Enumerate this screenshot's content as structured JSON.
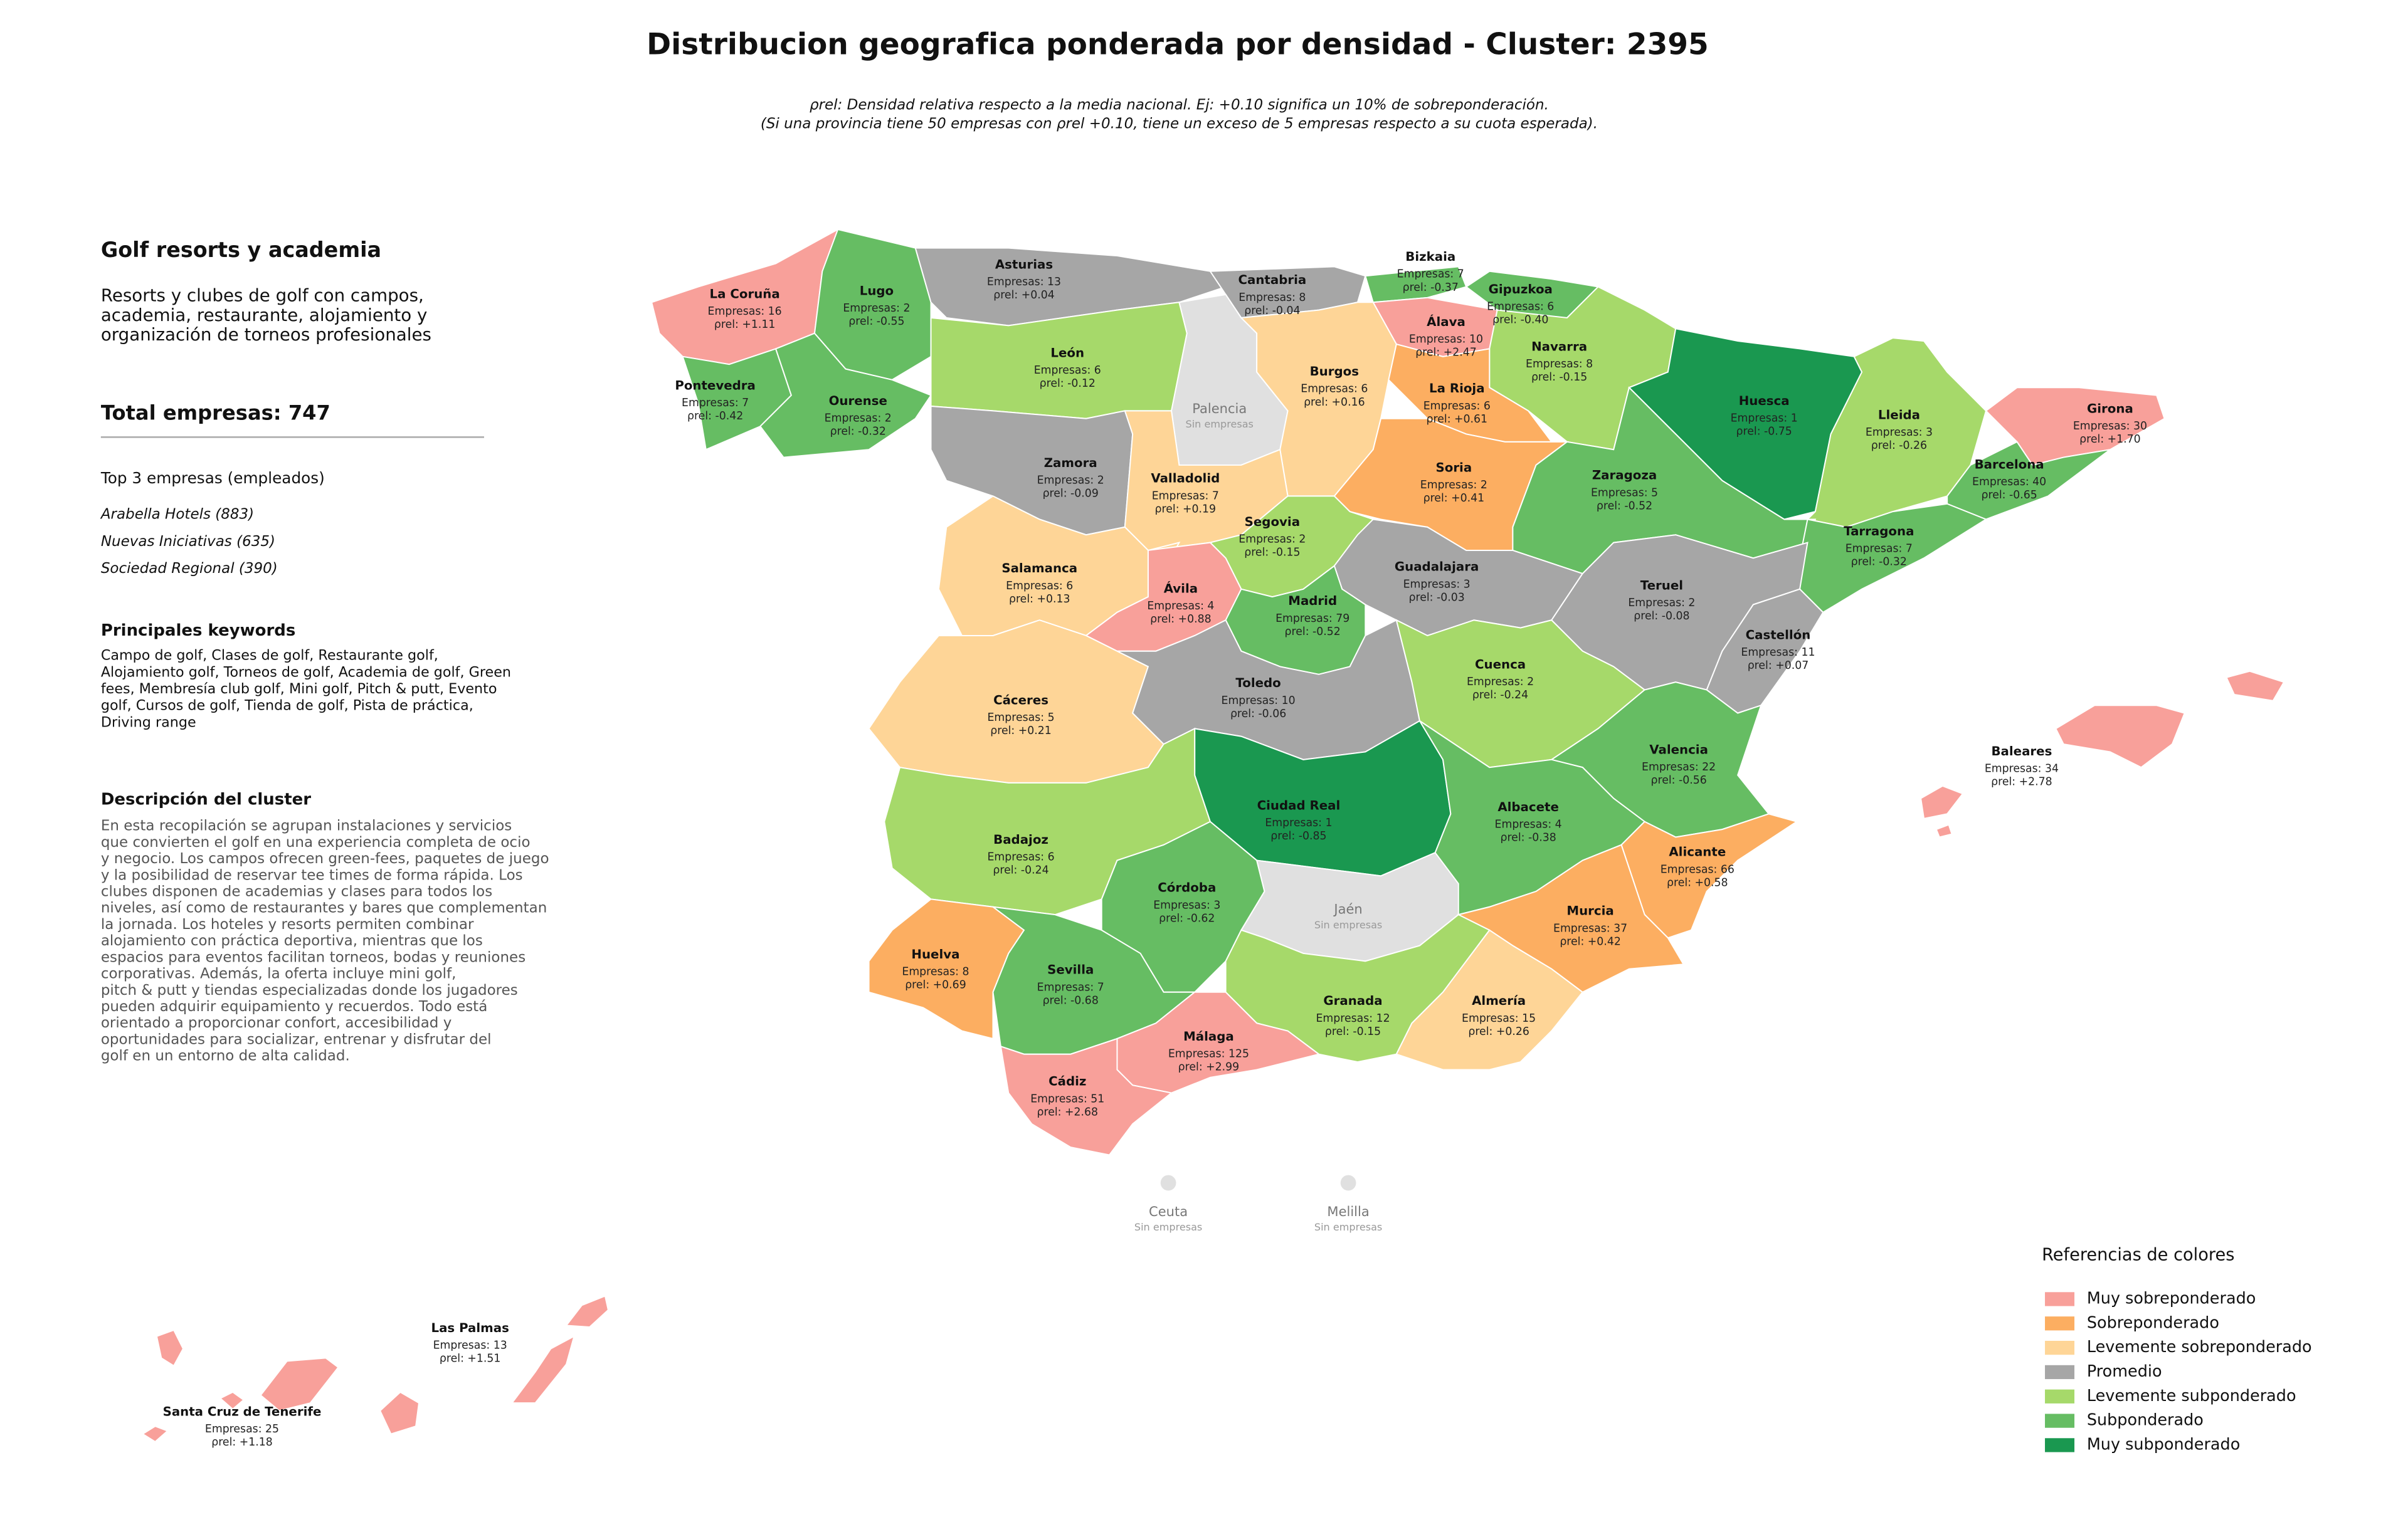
{
  "title": "Distribucion geografica ponderada por densidad - Cluster: 2395",
  "subtitle": [
    "ρrel: Densidad relativa respecto a la media nacional. Ej: +0.10 significa un 10% de sobreponderación.",
    "(Si una provincia tiene 50 empresas con ρrel +0.10, tiene un exceso de 5 empresas respecto a su cuota esperada)."
  ],
  "panel": {
    "heading": "Golf resorts y academia",
    "summary": [
      "Resorts y clubes de golf con campos,",
      "academia, restaurante, alojamiento y",
      "organización de torneos profesionales"
    ],
    "total": "Total empresas: 747",
    "top_title": "Top 3 empresas (empleados)",
    "top": [
      "Arabella Hotels (883)",
      "Nuevas Iniciativas (635)",
      "Sociedad Regional (390)"
    ],
    "keywords_title": "Principales keywords",
    "keywords": [
      "Campo de golf, Clases de golf, Restaurante golf,",
      "Alojamiento golf, Torneos de golf, Academia de golf, Green",
      "fees, Membresía club golf, Mini golf, Pitch & putt, Evento",
      "golf, Cursos de golf, Tienda de golf, Pista de práctica,",
      "Driving range"
    ],
    "description_title": "Descripción del cluster",
    "description": [
      "En esta recopilación se agrupan instalaciones y servicios",
      "que convierten el golf en una experiencia completa de ocio",
      "y negocio. Los campos ofrecen green-fees, paquetes de juego",
      "y la posibilidad de reservar tee times de forma rápida. Los",
      "clubes disponen de academias y clases para todos los",
      "niveles, así como de restaurantes y bares que complementan",
      "la jornada. Los hoteles y resorts permiten combinar",
      "alojamiento con práctica deportiva, mientras que los",
      "espacios para eventos facilitan torneos, bodas y reuniones",
      "corporativas. Además, la oferta incluye mini golf,",
      "pitch & putt y tiendas especializadas donde los jugadores",
      "pueden adquirir equipamiento y recuerdos. Todo está",
      "orientado a proporcionar confort, accesibilidad y",
      "oportunidades para socializar, entrenar y disfrutar del",
      "golf en un entorno de alta calidad."
    ]
  },
  "legend": {
    "title": "Referencias de colores",
    "items": [
      {
        "label": "Muy sobreponderado",
        "color": "#f8a09a"
      },
      {
        "label": "Sobreponderado",
        "color": "#fcae61"
      },
      {
        "label": "Levemente sobreponderado",
        "color": "#fed597"
      },
      {
        "label": "Promedio",
        "color": "#a6a6a6"
      },
      {
        "label": "Levemente subponderado",
        "color": "#a6d96a"
      },
      {
        "label": "Subponderado",
        "color": "#66bd63"
      },
      {
        "label": "Muy subponderado",
        "color": "#1a9850"
      }
    ]
  },
  "provinces": [
    {
      "name": "La Coruña",
      "empresas": "Empresas: 16",
      "rho": "ρrel: +1.11",
      "color": "#f8a09a"
    },
    {
      "name": "Lugo",
      "empresas": "Empresas: 2",
      "rho": "ρrel: -0.55",
      "color": "#66bd63"
    },
    {
      "name": "Asturias",
      "empresas": "Empresas: 13",
      "rho": "ρrel: +0.04",
      "color": "#a6a6a6"
    },
    {
      "name": "Cantabria",
      "empresas": "Empresas: 8",
      "rho": "ρrel: -0.04",
      "color": "#a6a6a6"
    },
    {
      "name": "Bizkaia",
      "empresas": "Empresas: 7",
      "rho": "ρrel: -0.37",
      "color": "#66bd63"
    },
    {
      "name": "Gipuzkoa",
      "empresas": "Empresas: 6",
      "rho": "ρrel: -0.40",
      "color": "#66bd63"
    },
    {
      "name": "Álava",
      "empresas": "Empresas: 10",
      "rho": "ρrel: +2.47",
      "color": "#f8a09a"
    },
    {
      "name": "Navarra",
      "empresas": "Empresas: 8",
      "rho": "ρrel: -0.15",
      "color": "#a6d96a"
    },
    {
      "name": "Pontevedra",
      "empresas": "Empresas: 7",
      "rho": "ρrel: -0.42",
      "color": "#66bd63"
    },
    {
      "name": "Ourense",
      "empresas": "Empresas: 2",
      "rho": "ρrel: -0.32",
      "color": "#66bd63"
    },
    {
      "name": "León",
      "empresas": "Empresas: 6",
      "rho": "ρrel: -0.12",
      "color": "#a6d96a"
    },
    {
      "name": "Palencia",
      "note": "Sin empresas",
      "color": "#e0e0e0"
    },
    {
      "name": "Burgos",
      "empresas": "Empresas: 6",
      "rho": "ρrel: +0.16",
      "color": "#fed597"
    },
    {
      "name": "La Rioja",
      "empresas": "Empresas: 6",
      "rho": "ρrel: +0.61",
      "color": "#fcae61"
    },
    {
      "name": "Huesca",
      "empresas": "Empresas: 1",
      "rho": "ρrel: -0.75",
      "color": "#1a9850"
    },
    {
      "name": "Lleida",
      "empresas": "Empresas: 3",
      "rho": "ρrel: -0.26",
      "color": "#a6d96a"
    },
    {
      "name": "Girona",
      "empresas": "Empresas: 30",
      "rho": "ρrel: +1.70",
      "color": "#f8a09a"
    },
    {
      "name": "Barcelona",
      "empresas": "Empresas: 40",
      "rho": "ρrel: -0.65",
      "color": "#66bd63"
    },
    {
      "name": "Zamora",
      "empresas": "Empresas: 2",
      "rho": "ρrel: -0.09",
      "color": "#a6a6a6"
    },
    {
      "name": "Valladolid",
      "empresas": "Empresas: 7",
      "rho": "ρrel: +0.19",
      "color": "#fed597"
    },
    {
      "name": "Soria",
      "empresas": "Empresas: 2",
      "rho": "ρrel: +0.41",
      "color": "#fcae61"
    },
    {
      "name": "Zaragoza",
      "empresas": "Empresas: 5",
      "rho": "ρrel: -0.52",
      "color": "#66bd63"
    },
    {
      "name": "Tarragona",
      "empresas": "Empresas: 7",
      "rho": "ρrel: -0.32",
      "color": "#66bd63"
    },
    {
      "name": "Segovia",
      "empresas": "Empresas: 2",
      "rho": "ρrel: -0.15",
      "color": "#a6d96a"
    },
    {
      "name": "Salamanca",
      "empresas": "Empresas: 6",
      "rho": "ρrel: +0.13",
      "color": "#fed597"
    },
    {
      "name": "Guadalajara",
      "empresas": "Empresas: 3",
      "rho": "ρrel: -0.03",
      "color": "#a6a6a6"
    },
    {
      "name": "Teruel",
      "empresas": "Empresas: 2",
      "rho": "ρrel: -0.08",
      "color": "#a6a6a6"
    },
    {
      "name": "Ávila",
      "empresas": "Empresas: 4",
      "rho": "ρrel: +0.88",
      "color": "#f8a09a"
    },
    {
      "name": "Madrid",
      "empresas": "Empresas: 79",
      "rho": "ρrel: -0.52",
      "color": "#66bd63"
    },
    {
      "name": "Castellón",
      "empresas": "Empresas: 11",
      "rho": "ρrel: +0.07",
      "color": "#a6a6a6"
    },
    {
      "name": "Cáceres",
      "empresas": "Empresas: 5",
      "rho": "ρrel: +0.21",
      "color": "#fed597"
    },
    {
      "name": "Toledo",
      "empresas": "Empresas: 10",
      "rho": "ρrel: -0.06",
      "color": "#a6a6a6"
    },
    {
      "name": "Cuenca",
      "empresas": "Empresas: 2",
      "rho": "ρrel: -0.24",
      "color": "#a6d96a"
    },
    {
      "name": "Valencia",
      "empresas": "Empresas: 22",
      "rho": "ρrel: -0.56",
      "color": "#66bd63"
    },
    {
      "name": "Baleares",
      "empresas": "Empresas: 34",
      "rho": "ρrel: +2.78",
      "color": "#f8a09a"
    },
    {
      "name": "Ciudad Real",
      "empresas": "Empresas: 1",
      "rho": "ρrel: -0.85",
      "color": "#1a9850"
    },
    {
      "name": "Albacete",
      "empresas": "Empresas: 4",
      "rho": "ρrel: -0.38",
      "color": "#66bd63"
    },
    {
      "name": "Badajoz",
      "empresas": "Empresas: 6",
      "rho": "ρrel: -0.24",
      "color": "#a6d96a"
    },
    {
      "name": "Alicante",
      "empresas": "Empresas: 66",
      "rho": "ρrel: +0.58",
      "color": "#fcae61"
    },
    {
      "name": "Córdoba",
      "empresas": "Empresas: 3",
      "rho": "ρrel: -0.62",
      "color": "#66bd63"
    },
    {
      "name": "Jaén",
      "note": "Sin empresas",
      "color": "#e0e0e0"
    },
    {
      "name": "Murcia",
      "empresas": "Empresas: 37",
      "rho": "ρrel: +0.42",
      "color": "#fcae61"
    },
    {
      "name": "Huelva",
      "empresas": "Empresas: 8",
      "rho": "ρrel: +0.69",
      "color": "#fcae61"
    },
    {
      "name": "Sevilla",
      "empresas": "Empresas: 7",
      "rho": "ρrel: -0.68",
      "color": "#66bd63"
    },
    {
      "name": "Granada",
      "empresas": "Empresas: 12",
      "rho": "ρrel: -0.15",
      "color": "#a6d96a"
    },
    {
      "name": "Almería",
      "empresas": "Empresas: 15",
      "rho": "ρrel: +0.26",
      "color": "#fed597"
    },
    {
      "name": "Málaga",
      "empresas": "Empresas: 125",
      "rho": "ρrel: +2.99",
      "color": "#f8a09a"
    },
    {
      "name": "Cádiz",
      "empresas": "Empresas: 51",
      "rho": "ρrel: +2.68",
      "color": "#f8a09a"
    },
    {
      "name": "Ceuta",
      "note": "Sin empresas",
      "color": "#e0e0e0"
    },
    {
      "name": "Melilla",
      "note": "Sin empresas",
      "color": "#e0e0e0"
    },
    {
      "name": "Las Palmas",
      "empresas": "Empresas: 13",
      "rho": "ρrel: +1.51",
      "color": "#f8a09a"
    },
    {
      "name": "Santa Cruz de Tenerife",
      "empresas": "Empresas: 25",
      "rho": "ρrel: +1.18",
      "color": "#f8a09a"
    }
  ]
}
